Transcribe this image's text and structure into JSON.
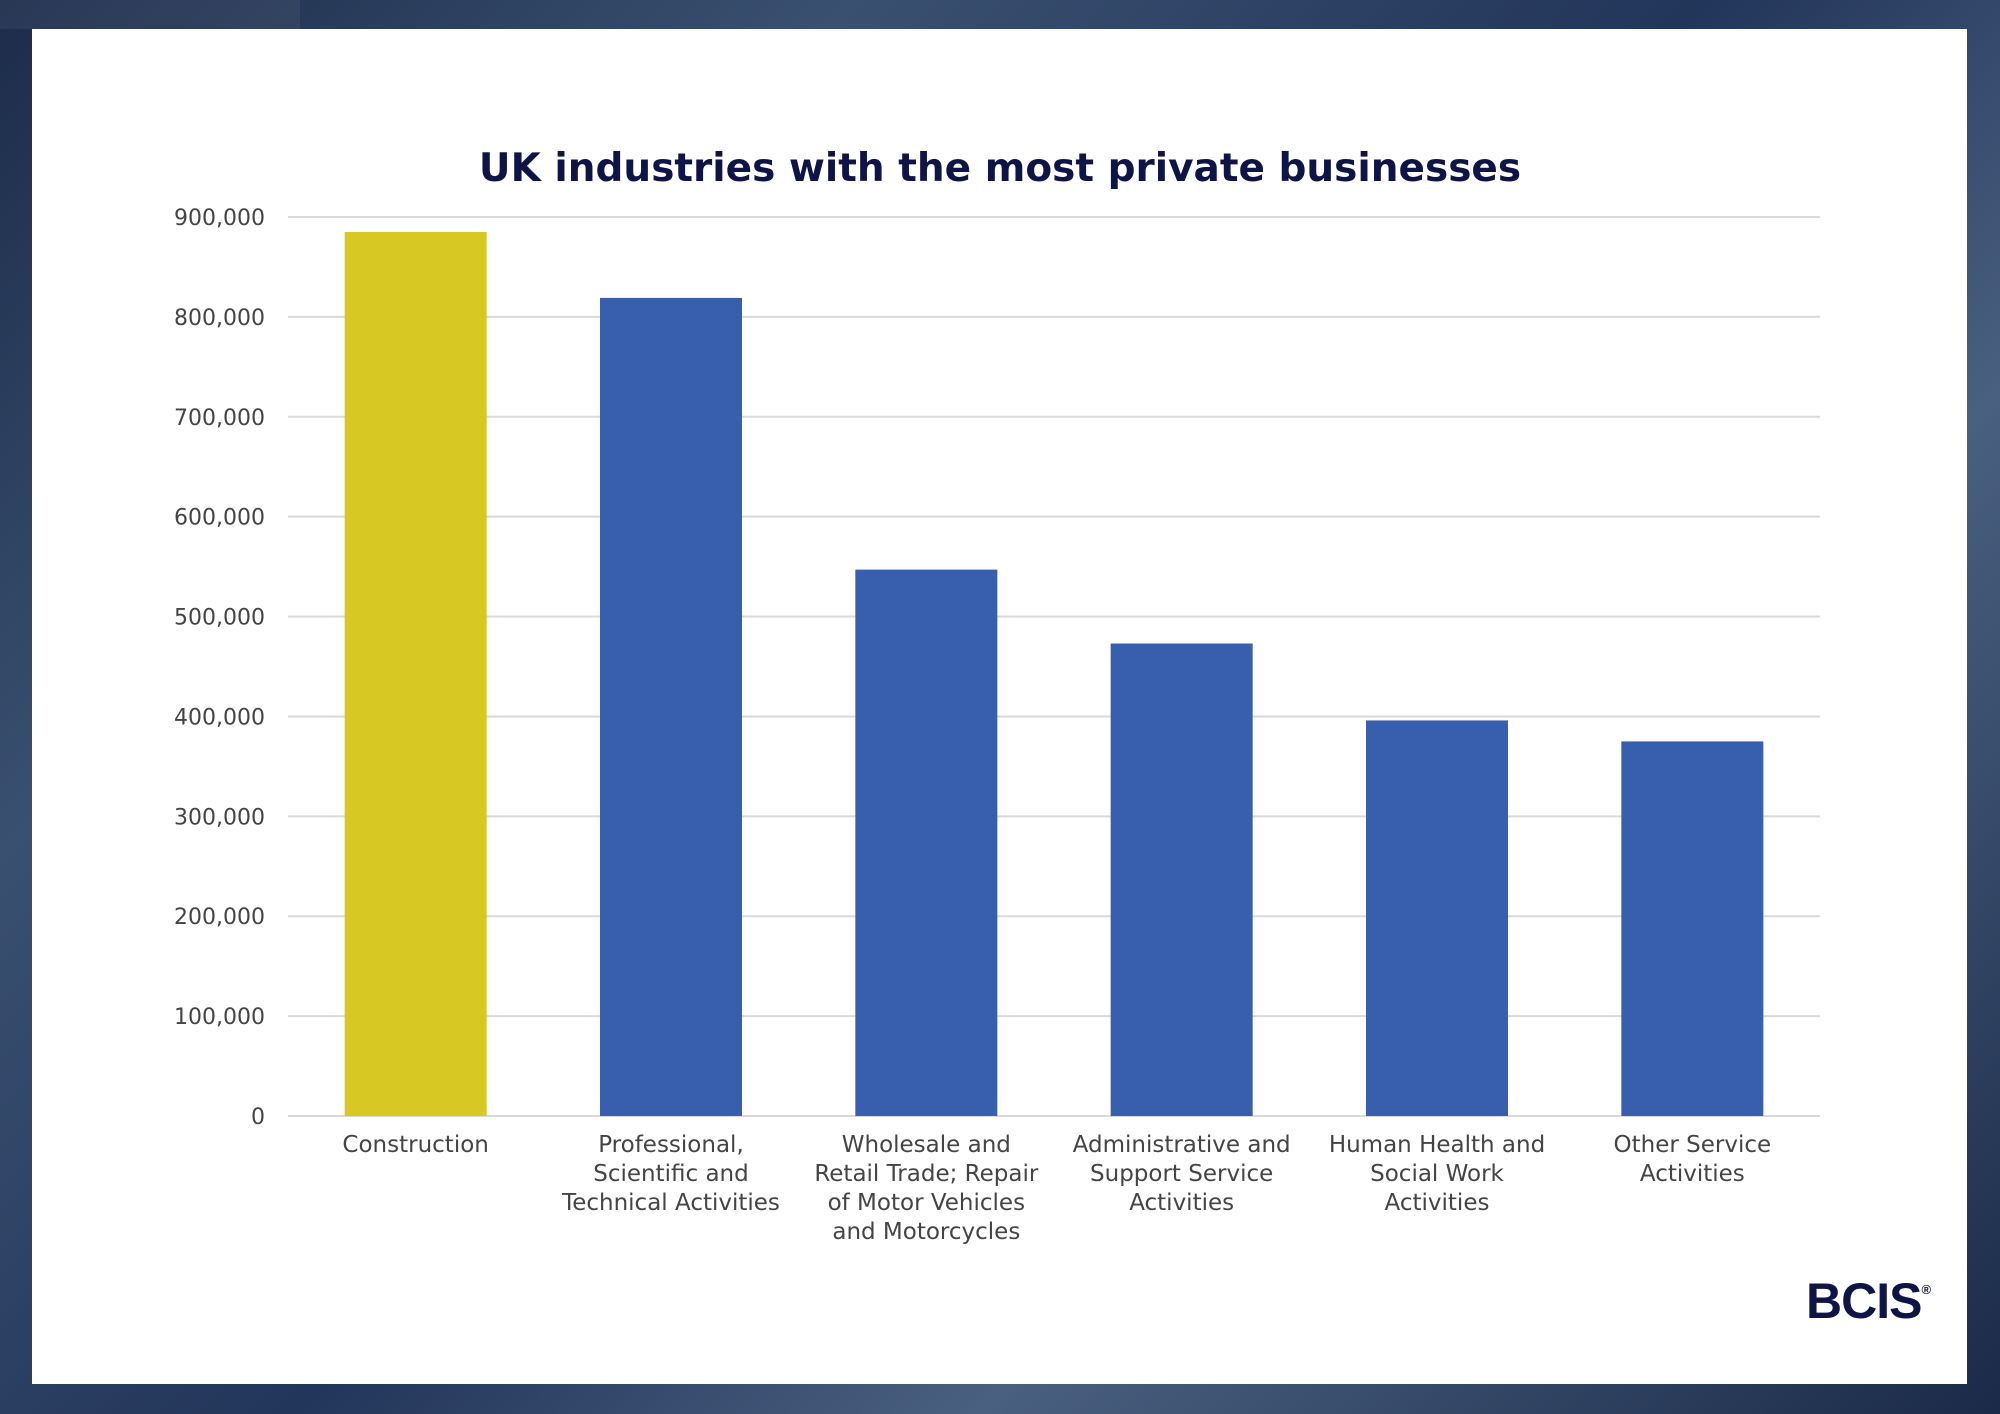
{
  "chart_data": {
    "type": "bar",
    "title": "UK industries with the most private businesses",
    "xlabel": "",
    "ylabel": "",
    "ylim": [
      0,
      900000
    ],
    "yticks": [
      0,
      100000,
      200000,
      300000,
      400000,
      500000,
      600000,
      700000,
      800000,
      900000
    ],
    "ytick_labels": [
      "0",
      "100,000",
      "200,000",
      "300,000",
      "400,000",
      "500,000",
      "600,000",
      "700,000",
      "800,000",
      "900,000"
    ],
    "grid": true,
    "categories": [
      "Construction",
      "Professional, Scientific and Technical Activities",
      "Wholesale and Retail Trade; Repair of Motor Vehicles and Motorcycles",
      "Administrative and Support Service Activities",
      "Human Health and Social Work Activities",
      "Other Service Activities"
    ],
    "category_lines": [
      [
        "Construction"
      ],
      [
        "Professional,",
        "Scientific and",
        "Technical Activities"
      ],
      [
        "Wholesale and",
        "Retail Trade; Repair",
        "of Motor Vehicles",
        "and Motorcycles"
      ],
      [
        "Administrative and",
        "Support Service",
        "Activities"
      ],
      [
        "Human Health and",
        "Social Work",
        "Activities"
      ],
      [
        "Other Service",
        "Activities"
      ]
    ],
    "values": [
      885000,
      819000,
      547000,
      473000,
      396000,
      375000
    ],
    "colors": [
      "#d8c823",
      "#385eae",
      "#385eae",
      "#385eae",
      "#385eae",
      "#385eae"
    ]
  },
  "brand": {
    "logo": "BCIS",
    "mark": "®"
  }
}
